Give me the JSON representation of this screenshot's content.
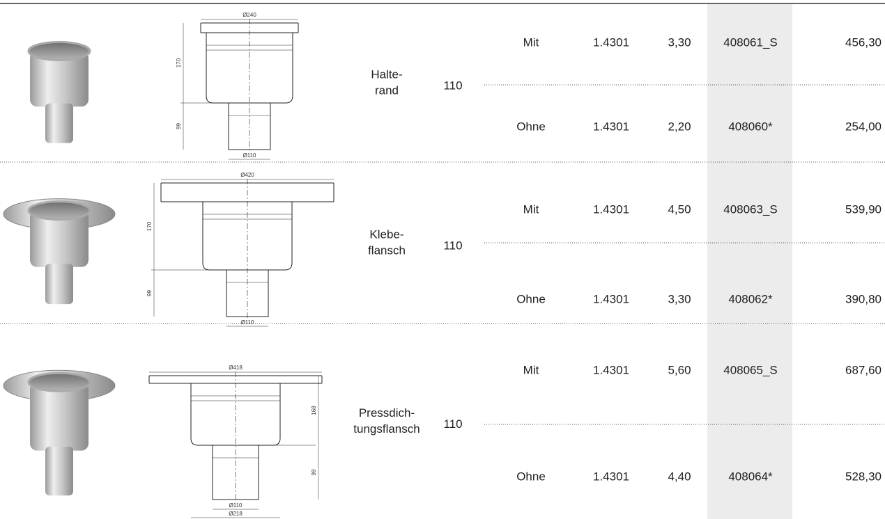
{
  "rows": [
    {
      "name": [
        "Halte-",
        "rand"
      ],
      "size": "110",
      "dims": {
        "top": "Ø240",
        "upper": "170",
        "lower": "99",
        "outlet": "Ø110"
      },
      "variants": [
        {
          "option": "Mit",
          "material": "1.4301",
          "weight": "3,30",
          "article": "408061_S",
          "price": "456,30"
        },
        {
          "option": "Ohne",
          "material": "1.4301",
          "weight": "2,20",
          "article": "408060*",
          "price": "254,00"
        }
      ]
    },
    {
      "name": [
        "Klebe-",
        "flansch"
      ],
      "size": "110",
      "dims": {
        "top": "Ø420",
        "upper": "170",
        "lower": "99",
        "outlet": "Ø110"
      },
      "variants": [
        {
          "option": "Mit",
          "material": "1.4301",
          "weight": "4,50",
          "article": "408063_S",
          "price": "539,90"
        },
        {
          "option": "Ohne",
          "material": "1.4301",
          "weight": "3,30",
          "article": "408062*",
          "price": "390,80"
        }
      ]
    },
    {
      "name": [
        "Pressdich-",
        "tungsflansch"
      ],
      "size": "110",
      "dims": {
        "top": "Ø418",
        "upper": "168",
        "lower": "99",
        "outlet": "Ø110",
        "base": "Ø218"
      },
      "variants": [
        {
          "option": "Mit",
          "material": "1.4301",
          "weight": "5,60",
          "article": "408065_S",
          "price": "687,60"
        },
        {
          "option": "Ohne",
          "material": "1.4301",
          "weight": "4,40",
          "article": "408064*",
          "price": "528,30"
        }
      ]
    }
  ]
}
